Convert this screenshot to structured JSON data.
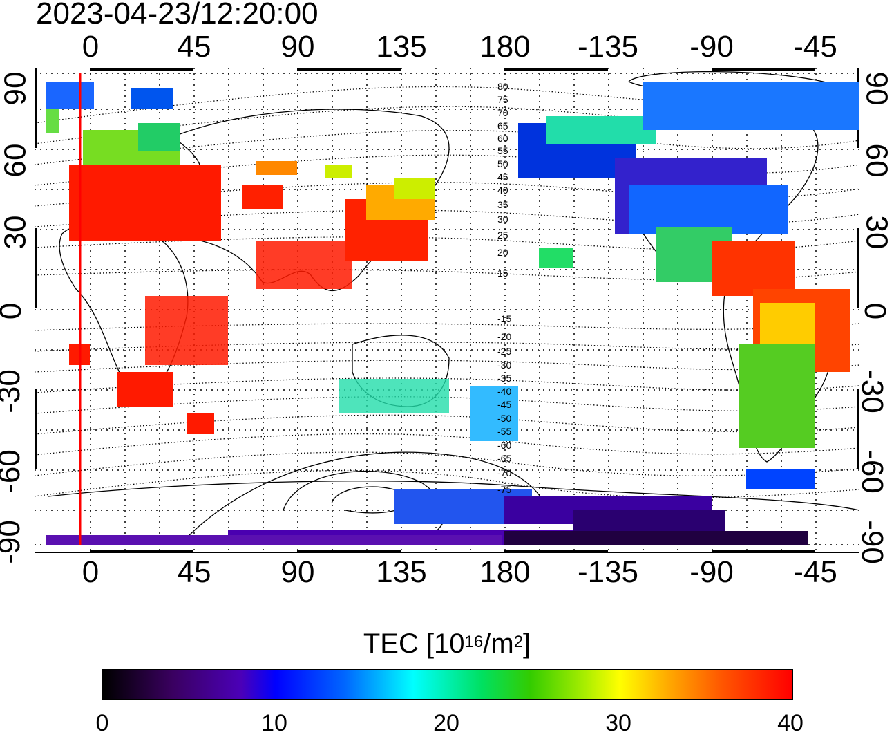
{
  "timestamp": "2023-04-23/12:20:00",
  "axes": {
    "top_ticks": [
      "0",
      "45",
      "90",
      "135",
      "180",
      "-135",
      "-90",
      "-45"
    ],
    "bottom_ticks": [
      "0",
      "45",
      "90",
      "135",
      "180",
      "-135",
      "-90",
      "-45"
    ],
    "left_ticks": [
      "90",
      "60",
      "30",
      "0",
      "-30",
      "-60",
      "-90"
    ],
    "right_ticks": [
      "90",
      "60",
      "30",
      "0",
      "-30",
      "-60",
      "-90"
    ]
  },
  "contour_labels": [
    "80",
    "75",
    "70",
    "65",
    "60",
    "55",
    "50",
    "45",
    "40",
    "35",
    "30",
    "25",
    "20",
    "15",
    "-15",
    "-20",
    "-25",
    "-30",
    "-35",
    "-40",
    "-45",
    "-50",
    "-55",
    "-60",
    "-65",
    "-70",
    "-75"
  ],
  "colorbar": {
    "title_prefix": "TEC  [10",
    "title_sup1": "16",
    "title_mid": "/m",
    "title_sup2": "2",
    "title_suffix": "]",
    "ticks": [
      "0",
      "10",
      "20",
      "30",
      "40"
    ],
    "range": [
      0,
      40
    ]
  },
  "colors": {
    "marker_line": "#ff0000",
    "high_tec": "#ff0000",
    "low_tec": "#3a0080"
  }
}
